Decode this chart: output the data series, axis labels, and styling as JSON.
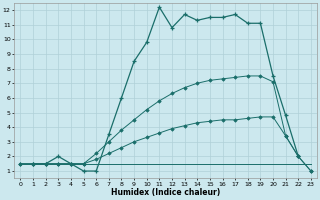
{
  "title": "",
  "xlabel": "Humidex (Indice chaleur)",
  "ylabel": "",
  "bg_color": "#cce8ee",
  "grid_color": "#b0d0d8",
  "line_color": "#1a6e6a",
  "xlim": [
    -0.5,
    23.5
  ],
  "ylim": [
    0.5,
    12.5
  ],
  "yticks": [
    1,
    2,
    3,
    4,
    5,
    6,
    7,
    8,
    9,
    10,
    11,
    12
  ],
  "xticks": [
    0,
    1,
    2,
    3,
    4,
    5,
    6,
    7,
    8,
    9,
    10,
    11,
    12,
    13,
    14,
    15,
    16,
    17,
    18,
    19,
    20,
    21,
    22,
    23
  ],
  "series_flat_x": [
    0,
    1,
    2,
    3,
    4,
    5,
    6,
    7,
    8,
    9,
    10,
    11,
    12,
    13,
    14,
    15,
    16,
    17,
    18,
    19,
    20,
    21,
    22,
    23
  ],
  "series_flat_y": [
    1.5,
    1.5,
    1.5,
    1.5,
    1.5,
    1.5,
    1.5,
    1.5,
    1.5,
    1.5,
    1.5,
    1.5,
    1.5,
    1.5,
    1.5,
    1.5,
    1.5,
    1.5,
    1.5,
    1.5,
    1.5,
    1.5,
    1.5,
    1.5
  ],
  "series_low_x": [
    0,
    1,
    2,
    3,
    4,
    5,
    6,
    7,
    8,
    9,
    10,
    11,
    12,
    13,
    14,
    15,
    16,
    17,
    18,
    19,
    20,
    21,
    22,
    23
  ],
  "series_low_y": [
    1.5,
    1.5,
    1.5,
    1.5,
    1.5,
    1.5,
    1.8,
    2.2,
    2.6,
    3.0,
    3.3,
    3.6,
    3.9,
    4.1,
    4.3,
    4.4,
    4.5,
    4.5,
    4.6,
    4.7,
    4.7,
    3.4,
    2.0,
    1.0
  ],
  "series_mid_x": [
    0,
    1,
    2,
    3,
    4,
    5,
    6,
    7,
    8,
    9,
    10,
    11,
    12,
    13,
    14,
    15,
    16,
    17,
    18,
    19,
    20,
    21,
    22,
    23
  ],
  "series_mid_y": [
    1.5,
    1.5,
    1.5,
    1.5,
    1.5,
    1.5,
    2.2,
    3.0,
    3.8,
    4.5,
    5.2,
    5.8,
    6.3,
    6.7,
    7.0,
    7.2,
    7.3,
    7.4,
    7.5,
    7.5,
    7.1,
    3.4,
    2.0,
    1.0
  ],
  "series_top_x": [
    1,
    2,
    3,
    4,
    5,
    6,
    7,
    8,
    9,
    10,
    11,
    12,
    13,
    14,
    15,
    16,
    17,
    18,
    19,
    20,
    21,
    22
  ],
  "series_top_y": [
    1.5,
    1.5,
    2.0,
    1.5,
    1.0,
    1.0,
    3.5,
    6.0,
    8.5,
    9.8,
    12.2,
    10.8,
    11.7,
    11.3,
    11.5,
    11.5,
    11.7,
    11.1,
    11.1,
    7.5,
    4.8,
    2.0
  ]
}
